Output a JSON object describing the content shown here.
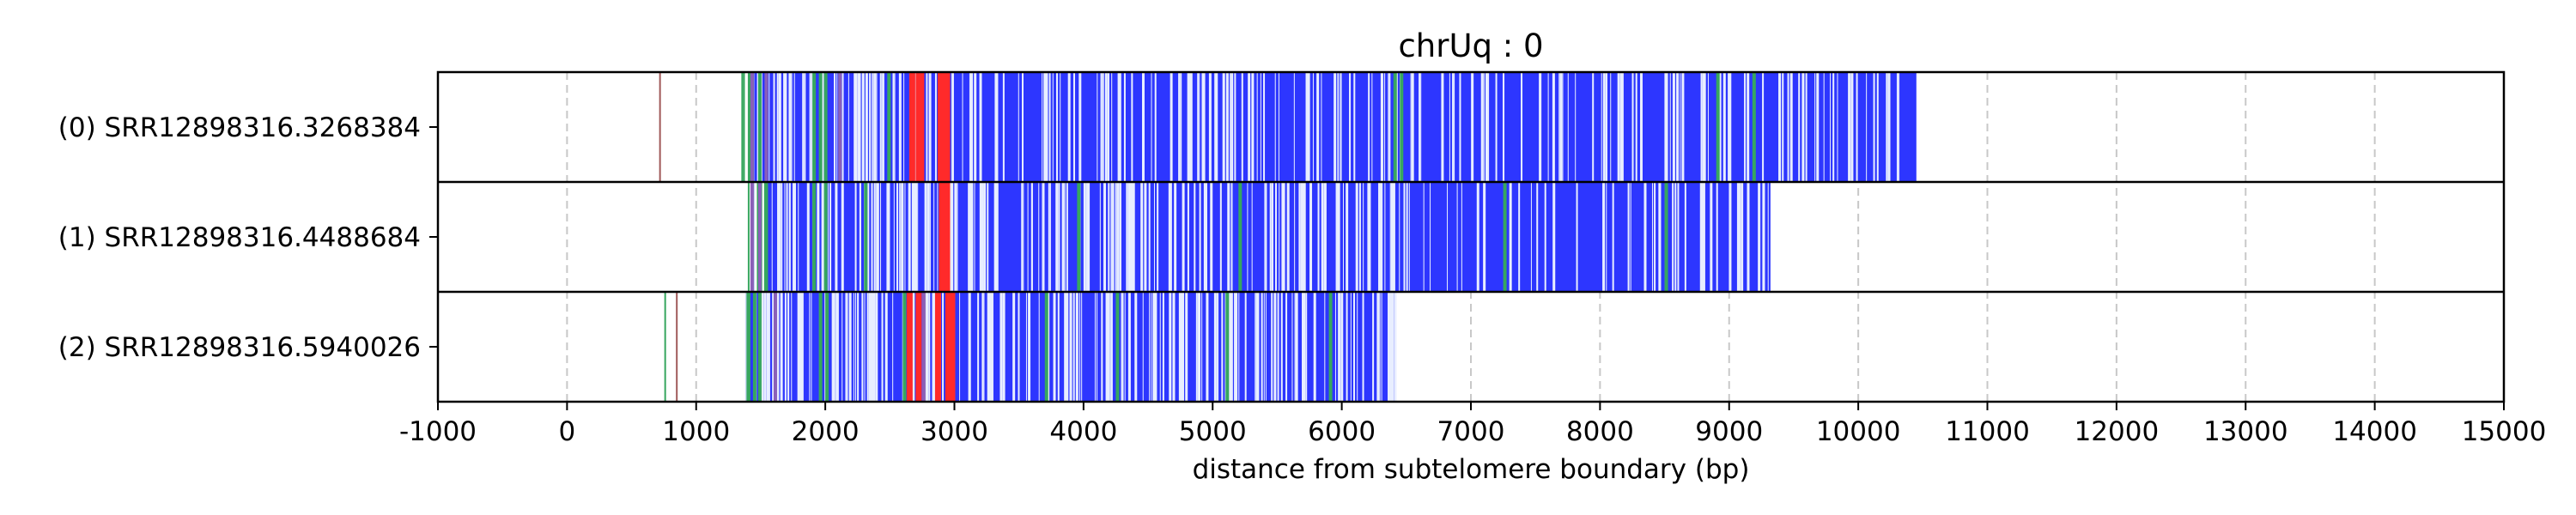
{
  "chart_data": {
    "type": "read-track",
    "title": "chrUq : 0",
    "xlabel": "distance from subtelomere boundary (bp)",
    "ylabel": "",
    "xlim": [
      -1000,
      15000
    ],
    "xticks": [
      -1000,
      0,
      1000,
      2000,
      3000,
      4000,
      5000,
      6000,
      7000,
      8000,
      9000,
      10000,
      11000,
      12000,
      13000,
      14000,
      15000
    ],
    "grid": "vertical dashed at x ticks",
    "colors": {
      "telomere_repeat": "#2d36ff",
      "variant_red": "#ff2a2a",
      "variant_green": "#37a65f",
      "variant_purple": "#8a5fb8",
      "light": "#c8d6f2",
      "sparse_mark": "#a05a5a"
    },
    "reads": [
      {
        "label": "(0) SRR12898316.3268384",
        "extent": [
          1350,
          10450
        ],
        "dense_start": 1450,
        "sparse_marks": [
          {
            "x": 720,
            "color": "#a05a5a"
          }
        ],
        "red_marks": [
          2650,
          2700,
          2720,
          2870,
          2900,
          2920
        ],
        "green_marks": [
          1400,
          1480,
          1900,
          1950,
          1990,
          2480,
          6400,
          6450,
          8900,
          9180
        ],
        "purple_marks": [
          1420,
          1530,
          2100
        ],
        "seed": 11
      },
      {
        "label": "(1) SRR12898316.4488684",
        "extent": [
          1400,
          9320
        ],
        "dense_start": 1550,
        "sparse_marks": [],
        "red_marks": [
          2880,
          2920
        ],
        "green_marks": [
          1530,
          1900,
          1990,
          2300,
          3950,
          5200,
          7250,
          8500
        ],
        "purple_marks": [
          1420,
          1480
        ],
        "seed": 23
      },
      {
        "label": "(2) SRR12898316.5940026",
        "extent": [
          1380,
          6420
        ],
        "dense_start": 1420,
        "sparse_marks": [
          {
            "x": 760,
            "color": "#37a65f"
          },
          {
            "x": 850,
            "color": "#a05a5a"
          }
        ],
        "red_marks": [
          2630,
          2700,
          2850,
          2930,
          2960
        ],
        "green_marks": [
          1390,
          1440,
          1480,
          1950,
          2000,
          2600,
          3700,
          4250,
          5100,
          5900
        ],
        "purple_marks": [
          1600,
          2750
        ],
        "seed": 37
      }
    ]
  }
}
